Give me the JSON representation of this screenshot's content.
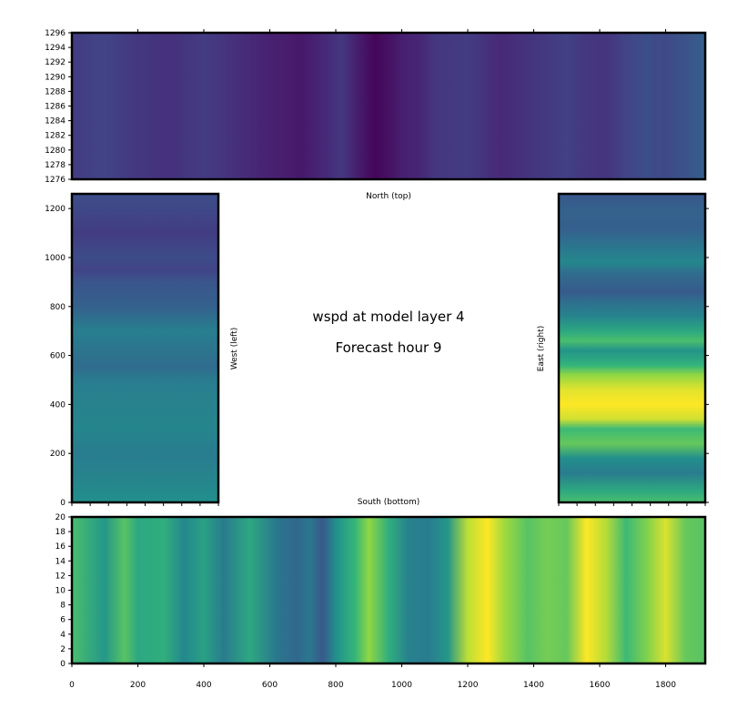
{
  "chart_data": {
    "type": "heatmap",
    "title": "wspd at model layer 4",
    "subtitle": "Forecast hour 9",
    "colormap": "viridis",
    "value_range": [
      0,
      1
    ],
    "panels": [
      {
        "name": "north",
        "label": "North (top)",
        "xlim": [
          0,
          1920
        ],
        "ylim": [
          1276,
          1296
        ],
        "yticks": [
          1276,
          1278,
          1280,
          1282,
          1284,
          1286,
          1288,
          1290,
          1292,
          1294,
          1296
        ],
        "xticks": [
          200,
          400,
          600,
          800,
          1000,
          1200,
          1400,
          1600,
          1800
        ],
        "orientation": "columns",
        "profile": [
          [
            0,
            0.22
          ],
          [
            100,
            0.25
          ],
          [
            200,
            0.2
          ],
          [
            300,
            0.18
          ],
          [
            400,
            0.22
          ],
          [
            500,
            0.17
          ],
          [
            600,
            0.12
          ],
          [
            700,
            0.09
          ],
          [
            760,
            0.14
          ],
          [
            820,
            0.2
          ],
          [
            880,
            0.08
          ],
          [
            920,
            0.02
          ],
          [
            960,
            0.06
          ],
          [
            1000,
            0.11
          ],
          [
            1060,
            0.14
          ],
          [
            1100,
            0.2
          ],
          [
            1200,
            0.22
          ],
          [
            1300,
            0.15
          ],
          [
            1360,
            0.18
          ],
          [
            1420,
            0.2
          ],
          [
            1500,
            0.24
          ],
          [
            1560,
            0.2
          ],
          [
            1620,
            0.19
          ],
          [
            1680,
            0.25
          ],
          [
            1740,
            0.3
          ],
          [
            1800,
            0.28
          ],
          [
            1860,
            0.32
          ],
          [
            1920,
            0.38
          ]
        ]
      },
      {
        "name": "west",
        "label": "West (left)",
        "xlim": [
          0,
          450
        ],
        "ylim": [
          0,
          1260
        ],
        "yticks": [
          0,
          200,
          400,
          600,
          800,
          1000,
          1200
        ],
        "orientation": "rows",
        "profile": [
          [
            0,
            0.62
          ],
          [
            100,
            0.56
          ],
          [
            200,
            0.52
          ],
          [
            300,
            0.57
          ],
          [
            400,
            0.55
          ],
          [
            500,
            0.52
          ],
          [
            550,
            0.44
          ],
          [
            600,
            0.47
          ],
          [
            700,
            0.53
          ],
          [
            800,
            0.39
          ],
          [
            900,
            0.33
          ],
          [
            950,
            0.25
          ],
          [
            1000,
            0.29
          ],
          [
            1100,
            0.22
          ],
          [
            1200,
            0.27
          ],
          [
            1260,
            0.3
          ]
        ]
      },
      {
        "name": "east",
        "label": "East (right)",
        "xlim": [
          0,
          450
        ],
        "ylim": [
          0,
          1260
        ],
        "yticks": [
          0,
          200,
          400,
          600,
          800,
          1000,
          1200
        ],
        "orientation": "rows",
        "profile": [
          [
            0,
            0.78
          ],
          [
            50,
            0.7
          ],
          [
            120,
            0.52
          ],
          [
            180,
            0.62
          ],
          [
            240,
            0.82
          ],
          [
            300,
            0.76
          ],
          [
            340,
            0.95
          ],
          [
            400,
            1.0
          ],
          [
            460,
            0.97
          ],
          [
            520,
            0.88
          ],
          [
            560,
            0.74
          ],
          [
            620,
            0.64
          ],
          [
            660,
            0.78
          ],
          [
            700,
            0.7
          ],
          [
            760,
            0.56
          ],
          [
            820,
            0.45
          ],
          [
            860,
            0.36
          ],
          [
            940,
            0.45
          ],
          [
            980,
            0.58
          ],
          [
            1050,
            0.48
          ],
          [
            1120,
            0.38
          ],
          [
            1180,
            0.4
          ],
          [
            1260,
            0.34
          ]
        ]
      },
      {
        "name": "south",
        "label": "South (bottom)",
        "xlim": [
          0,
          1920
        ],
        "ylim": [
          0,
          20
        ],
        "yticks": [
          0,
          2,
          4,
          6,
          8,
          10,
          12,
          14,
          16,
          18,
          20
        ],
        "xticks": [
          0,
          200,
          400,
          600,
          800,
          1000,
          1200,
          1400,
          1600,
          1800
        ],
        "orientation": "columns",
        "profile": [
          [
            0,
            0.78
          ],
          [
            100,
            0.65
          ],
          [
            160,
            0.8
          ],
          [
            200,
            0.7
          ],
          [
            280,
            0.72
          ],
          [
            340,
            0.58
          ],
          [
            400,
            0.68
          ],
          [
            460,
            0.52
          ],
          [
            540,
            0.7
          ],
          [
            620,
            0.5
          ],
          [
            680,
            0.42
          ],
          [
            720,
            0.5
          ],
          [
            760,
            0.35
          ],
          [
            800,
            0.62
          ],
          [
            860,
            0.75
          ],
          [
            900,
            0.88
          ],
          [
            960,
            0.72
          ],
          [
            1020,
            0.55
          ],
          [
            1080,
            0.52
          ],
          [
            1140,
            0.65
          ],
          [
            1200,
            0.93
          ],
          [
            1260,
            1.0
          ],
          [
            1310,
            0.9
          ],
          [
            1380,
            0.8
          ],
          [
            1440,
            0.84
          ],
          [
            1500,
            0.82
          ],
          [
            1560,
            1.0
          ],
          [
            1620,
            0.92
          ],
          [
            1680,
            0.76
          ],
          [
            1740,
            0.85
          ],
          [
            1800,
            0.96
          ],
          [
            1860,
            0.82
          ],
          [
            1920,
            0.8
          ]
        ]
      }
    ]
  }
}
